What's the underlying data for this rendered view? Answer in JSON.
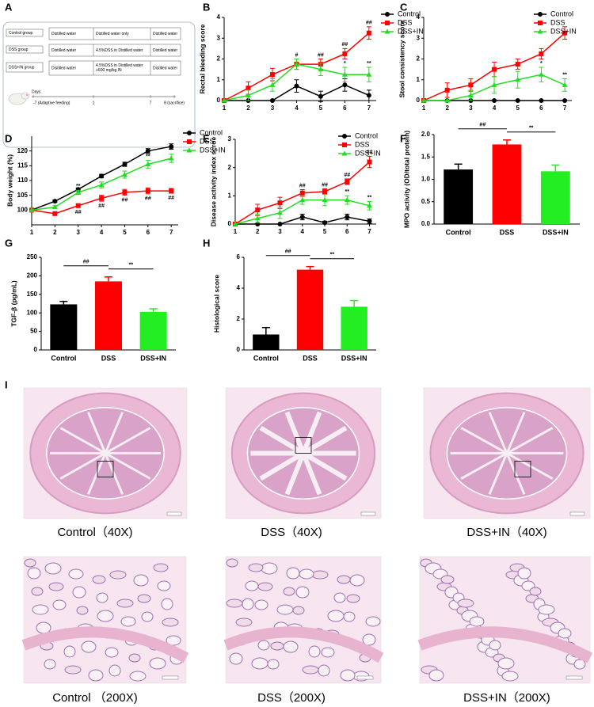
{
  "design": {
    "panel": "A",
    "rows": [
      [
        "Control group",
        "Distilled water",
        "Distilled water only",
        "Distilled water"
      ],
      [
        "DSS group",
        "Distilled water",
        "4.5%DSS in Distilled water",
        "Distilled water"
      ],
      [
        "DSS+IN group",
        "Distilled water",
        "4.5%DSS in Distilled water +600 mg/kg IN",
        "Distilled water"
      ]
    ],
    "timeline_label": "Days",
    "timeline": [
      "-7 (Adaptive feeding)",
      "1",
      "7",
      "8 (sacrifice)"
    ]
  },
  "chart_data": [
    {
      "type": "line",
      "panel": "B",
      "ylabel": "Rectal bleeding score",
      "x": [
        1,
        2,
        3,
        4,
        5,
        6,
        7
      ],
      "xlim": [
        1,
        7.3
      ],
      "xticks": [
        1,
        2,
        3,
        4,
        5,
        6,
        7
      ],
      "ylim": [
        0,
        4
      ],
      "yticks": [
        0,
        1,
        2,
        3,
        4
      ],
      "legend": "right",
      "series": [
        {
          "name": "Control",
          "color": "#000000",
          "marker": "circle",
          "values": [
            0,
            0,
            0,
            0.7,
            0.2,
            0.75,
            0.25
          ],
          "errors": [
            0,
            0,
            0,
            0.3,
            0.25,
            0.3,
            0.25
          ]
        },
        {
          "name": "DSS",
          "color": "#ff0000",
          "marker": "square",
          "values": [
            0,
            0.6,
            1.25,
            1.75,
            1.75,
            2.25,
            3.25
          ],
          "errors": [
            0,
            0.3,
            0.3,
            0.25,
            0.25,
            0.25,
            0.3
          ]
        },
        {
          "name": "DSS+IN",
          "color": "#22dd22",
          "marker": "triangle",
          "values": [
            0,
            0.25,
            0.75,
            1.75,
            1.5,
            1.25,
            1.25
          ],
          "errors": [
            0,
            0.25,
            0.3,
            0.25,
            0.3,
            0.35,
            0.35
          ]
        }
      ],
      "annotations": [
        {
          "x": 4,
          "series": "DSS",
          "text": "#"
        },
        {
          "x": 5,
          "series": "DSS",
          "text": "##"
        },
        {
          "x": 6,
          "series": "DSS",
          "text": "##"
        },
        {
          "x": 7,
          "series": "DSS",
          "text": "##"
        },
        {
          "x": 6,
          "series": "DSS+IN",
          "text": "*"
        },
        {
          "x": 7,
          "series": "DSS+IN",
          "text": "**"
        }
      ]
    },
    {
      "type": "line",
      "panel": "C",
      "ylabel": "Stool consistency score",
      "x": [
        1,
        2,
        3,
        4,
        5,
        6,
        7
      ],
      "xlim": [
        1,
        7.3
      ],
      "xticks": [
        1,
        2,
        3,
        4,
        5,
        6,
        7
      ],
      "ylim": [
        0,
        4
      ],
      "yticks": [
        0,
        1,
        2,
        3,
        4
      ],
      "legend": "upper right",
      "series": [
        {
          "name": "Control",
          "color": "#000000",
          "marker": "circle",
          "values": [
            0,
            0,
            0,
            0,
            0,
            0,
            0
          ],
          "errors": [
            0,
            0,
            0,
            0,
            0,
            0,
            0
          ]
        },
        {
          "name": "DSS",
          "color": "#ff0000",
          "marker": "square",
          "values": [
            0,
            0.5,
            0.75,
            1.5,
            1.75,
            2.25,
            3.25
          ],
          "errors": [
            0,
            0.35,
            0.3,
            0.35,
            0.25,
            0.25,
            0.3
          ]
        },
        {
          "name": "DSS+IN",
          "color": "#22dd22",
          "marker": "triangle",
          "values": [
            0,
            0,
            0.25,
            0.75,
            1.0,
            1.25,
            0.75
          ],
          "errors": [
            0,
            0,
            0.25,
            0.4,
            0.4,
            0.35,
            0.3
          ]
        }
      ],
      "annotations": [
        {
          "x": 6,
          "series": "DSS+IN",
          "text": "*"
        },
        {
          "x": 7,
          "series": "DSS+IN",
          "text": "**"
        }
      ]
    },
    {
      "type": "line",
      "panel": "D",
      "ylabel": "Body weight (%)",
      "x": [
        1,
        2,
        3,
        4,
        5,
        6,
        7
      ],
      "xlim": [
        1,
        7.3
      ],
      "xticks": [
        1,
        2,
        3,
        4,
        5,
        6,
        7
      ],
      "ylim": [
        95,
        125
      ],
      "yticks": [
        100,
        105,
        110,
        115,
        120
      ],
      "legend": "right",
      "series": [
        {
          "name": "Control",
          "color": "#000000",
          "marker": "circle",
          "values": [
            100,
            103,
            107,
            111.5,
            115.5,
            120,
            121.5
          ],
          "errors": [
            0,
            0.4,
            0.5,
            0.6,
            0.7,
            0.8,
            0.9
          ]
        },
        {
          "name": "DSS",
          "color": "#ff0000",
          "marker": "square",
          "values": [
            100,
            98.8,
            101.5,
            104,
            106,
            106.5,
            106.5
          ],
          "errors": [
            0,
            0.5,
            0.6,
            1.0,
            1.0,
            1.0,
            0.8
          ]
        },
        {
          "name": "DSS+IN",
          "color": "#22dd22",
          "marker": "triangle",
          "values": [
            100,
            101,
            106,
            108.5,
            112,
            115.5,
            117.5
          ],
          "errors": [
            0,
            0.5,
            0.7,
            1.0,
            1.2,
            1.3,
            1.4
          ]
        }
      ],
      "annotations": [
        {
          "x": 3,
          "series": "DSS",
          "text": "##"
        },
        {
          "x": 4,
          "series": "DSS",
          "text": "##"
        },
        {
          "x": 5,
          "series": "DSS",
          "text": "##"
        },
        {
          "x": 6,
          "series": "DSS",
          "text": "##"
        },
        {
          "x": 7,
          "series": "DSS",
          "text": "##"
        },
        {
          "x": 3,
          "series": "DSS+IN",
          "text": "**"
        },
        {
          "x": 4,
          "series": "DSS+IN",
          "text": "*"
        },
        {
          "x": 5,
          "series": "DSS+IN",
          "text": "**"
        },
        {
          "x": 6,
          "series": "DSS+IN",
          "text": "**"
        },
        {
          "x": 7,
          "series": "DSS+IN",
          "text": "**"
        }
      ]
    },
    {
      "type": "line",
      "panel": "E",
      "ylabel": "Disease activity index scroe",
      "x": [
        1,
        2,
        3,
        4,
        5,
        6,
        7
      ],
      "xlim": [
        1,
        7.3
      ],
      "xticks": [
        1,
        2,
        3,
        4,
        5,
        6,
        7
      ],
      "ylim": [
        0,
        3
      ],
      "yticks": [
        0,
        1,
        2,
        3
      ],
      "legend": "upper right",
      "series": [
        {
          "name": "Control",
          "color": "#000000",
          "marker": "circle",
          "values": [
            0,
            0,
            0,
            0.25,
            0.05,
            0.25,
            0.1
          ],
          "errors": [
            0,
            0,
            0,
            0.1,
            0.05,
            0.1,
            0.08
          ]
        },
        {
          "name": "DSS",
          "color": "#ff0000",
          "marker": "square",
          "values": [
            0,
            0.5,
            0.75,
            1.1,
            1.15,
            1.5,
            2.2
          ],
          "errors": [
            0,
            0.2,
            0.2,
            0.12,
            0.1,
            0.1,
            0.2
          ]
        },
        {
          "name": "DSS+IN",
          "color": "#22dd22",
          "marker": "triangle",
          "values": [
            0,
            0.2,
            0.4,
            0.85,
            0.85,
            0.85,
            0.65
          ],
          "errors": [
            0,
            0.15,
            0.2,
            0.15,
            0.2,
            0.15,
            0.15
          ]
        }
      ],
      "annotations": [
        {
          "x": 4,
          "series": "DSS",
          "text": "##"
        },
        {
          "x": 5,
          "series": "DSS",
          "text": "##"
        },
        {
          "x": 6,
          "series": "DSS",
          "text": "##"
        },
        {
          "x": 7,
          "series": "DSS",
          "text": "##"
        },
        {
          "x": 6,
          "series": "DSS+IN",
          "text": "**"
        },
        {
          "x": 7,
          "series": "DSS+IN",
          "text": "**"
        }
      ]
    },
    {
      "type": "bar",
      "panel": "F",
      "ylabel": "MPO activity (OD/total protein)",
      "categories": [
        "Control",
        "DSS",
        "DSS+IN"
      ],
      "values": [
        1.22,
        1.78,
        1.18
      ],
      "errors": [
        0.12,
        0.1,
        0.14
      ],
      "colors": [
        "#000000",
        "#ff0000",
        "#22ee22"
      ],
      "ylim": [
        0,
        2
      ],
      "yticks": [
        {
          "value": 0,
          "label": "0.0"
        },
        0.5,
        {
          "value": 1,
          "label": "1.0"
        },
        1.5,
        {
          "value": 2,
          "label": "2.0"
        }
      ],
      "brackets": [
        {
          "from": 0,
          "to": 1,
          "text": "##"
        },
        {
          "from": 1,
          "to": 2,
          "text": "**"
        }
      ]
    },
    {
      "type": "bar",
      "panel": "G",
      "ylabel": "TGF-β (pg/mL)",
      "categories": [
        "Control",
        "DSS",
        "DSS+IN"
      ],
      "values": [
        123,
        185,
        103
      ],
      "errors": [
        8,
        12,
        8
      ],
      "colors": [
        "#000000",
        "#ff0000",
        "#22ee22"
      ],
      "ylim": [
        0,
        250
      ],
      "yticks": [
        0,
        50,
        100,
        150,
        200,
        250
      ],
      "brackets": [
        {
          "from": 0,
          "to": 1,
          "text": "##"
        },
        {
          "from": 1,
          "to": 2,
          "text": "**"
        }
      ]
    },
    {
      "type": "bar",
      "panel": "H",
      "ylabel": "Histological score",
      "categories": [
        "Control",
        "DSS",
        "DSS+IN"
      ],
      "values": [
        1.0,
        5.2,
        2.8
      ],
      "errors": [
        0.45,
        0.2,
        0.4
      ],
      "colors": [
        "#000000",
        "#ff0000",
        "#22ee22"
      ],
      "ylim": [
        0,
        6
      ],
      "yticks": [
        0,
        2,
        4,
        6
      ],
      "brackets": [
        {
          "from": 0,
          "to": 1,
          "text": "##"
        },
        {
          "from": 1,
          "to": 2,
          "text": "**"
        }
      ]
    }
  ],
  "histology": {
    "panel": "I",
    "captions": [
      "Control（40X)",
      "DSS（40X)",
      "DSS+IN（40X)",
      "Control （200X)",
      "DSS（200X)",
      "DSS+IN（200X)"
    ]
  }
}
